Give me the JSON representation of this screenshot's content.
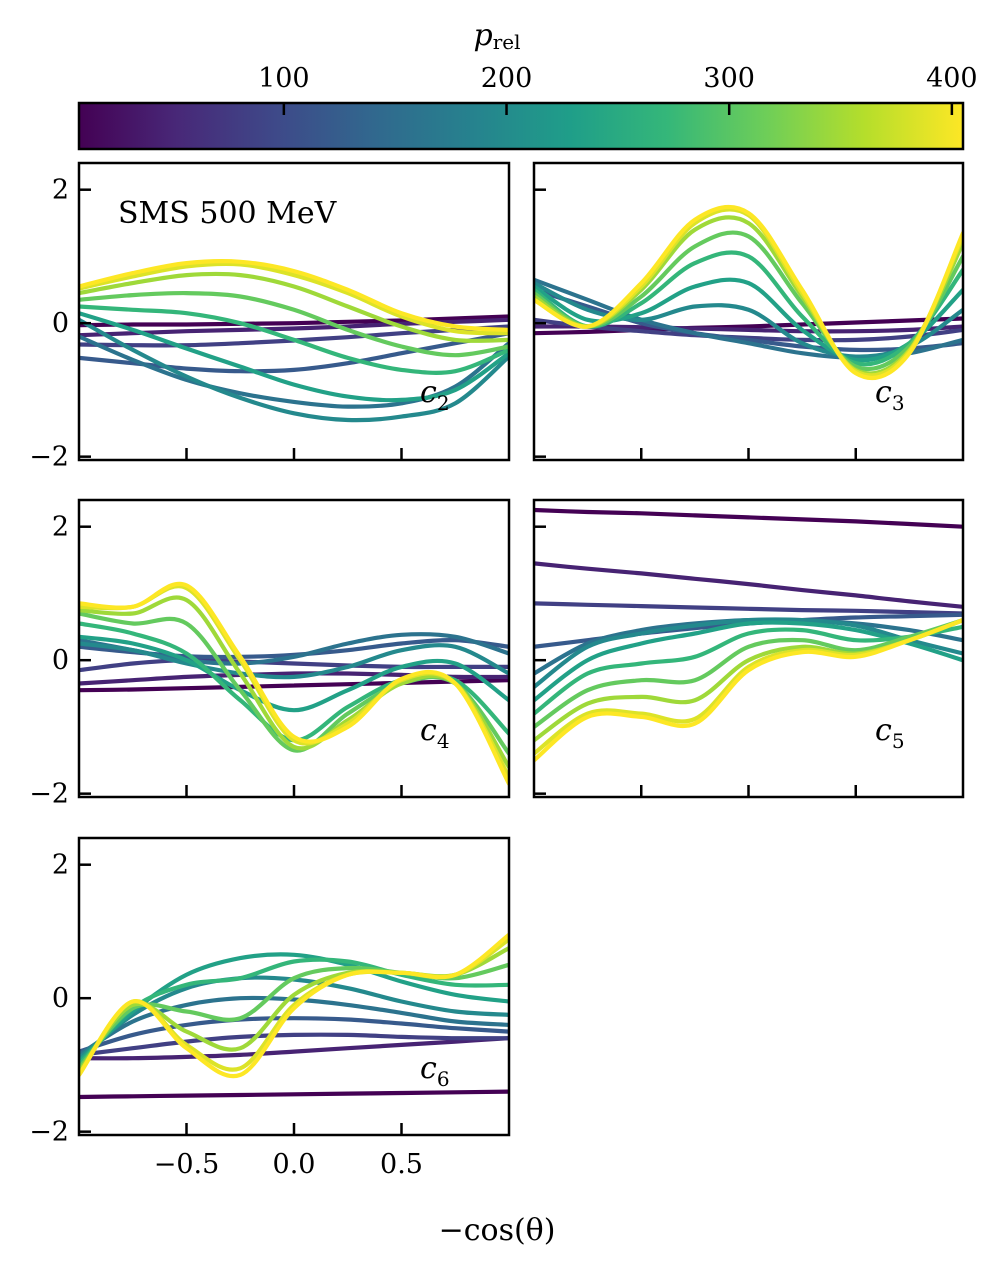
{
  "chart_data": {
    "type": "line",
    "annotation": "SMS 500 MeV",
    "xlabel": "−cos(θ)",
    "xlim": [
      -1,
      1
    ],
    "ylim": [
      -2.05,
      2.4
    ],
    "xticks": [
      -0.5,
      0.0,
      0.5
    ],
    "xtick_labels": [
      "−0.5",
      "0.0",
      "0.5"
    ],
    "yticks": [
      -2,
      0,
      2
    ],
    "ytick_labels": [
      "−2",
      "0",
      "2"
    ],
    "colorbar": {
      "label": "p",
      "label_sub": "rel",
      "range": [
        8,
        405
      ],
      "ticks": [
        100,
        200,
        300,
        400
      ],
      "tick_labels": [
        "100",
        "200",
        "300",
        "400"
      ],
      "colormap": "viridis",
      "colors": [
        "#440154",
        "#482878",
        "#3e4989",
        "#31688e",
        "#26828e",
        "#1f9e89",
        "#35b779",
        "#6ece58",
        "#b5de2b",
        "#fde725"
      ]
    },
    "series_momenta": [
      8,
      46,
      84,
      121,
      159,
      196,
      234,
      271,
      309,
      347,
      385,
      405
    ],
    "panels": [
      {
        "name": "c2",
        "label_main": "c",
        "label_sub": "2",
        "x": [
          -1.0,
          -0.75,
          -0.5,
          -0.25,
          0.0,
          0.25,
          0.5,
          0.75,
          1.0
        ],
        "series": [
          {
            "p": 8,
            "y": [
              -0.03,
              -0.02,
              -0.02,
              -0.01,
              0.0,
              0.02,
              0.04,
              0.07,
              0.1
            ]
          },
          {
            "p": 46,
            "y": [
              -0.18,
              -0.15,
              -0.12,
              -0.1,
              -0.08,
              -0.05,
              -0.01,
              0.02,
              0.05
            ]
          },
          {
            "p": 84,
            "y": [
              -0.32,
              -0.33,
              -0.33,
              -0.3,
              -0.26,
              -0.21,
              -0.15,
              -0.1,
              -0.05
            ]
          },
          {
            "p": 121,
            "y": [
              -0.52,
              -0.6,
              -0.68,
              -0.72,
              -0.7,
              -0.6,
              -0.45,
              -0.3,
              -0.15
            ]
          },
          {
            "p": 159,
            "y": [
              -0.2,
              -0.55,
              -0.85,
              -1.05,
              -1.18,
              -1.25,
              -1.2,
              -0.95,
              -0.3
            ]
          },
          {
            "p": 196,
            "y": [
              0.05,
              -0.4,
              -0.8,
              -1.12,
              -1.35,
              -1.45,
              -1.4,
              -1.2,
              -0.5
            ]
          },
          {
            "p": 234,
            "y": [
              0.15,
              -0.1,
              -0.38,
              -0.65,
              -0.92,
              -1.1,
              -1.15,
              -1.0,
              -0.45
            ]
          },
          {
            "p": 271,
            "y": [
              0.25,
              0.2,
              0.15,
              0.0,
              -0.25,
              -0.52,
              -0.7,
              -0.72,
              -0.4
            ]
          },
          {
            "p": 309,
            "y": [
              0.35,
              0.42,
              0.45,
              0.4,
              0.2,
              -0.1,
              -0.35,
              -0.48,
              -0.35
            ]
          },
          {
            "p": 347,
            "y": [
              0.45,
              0.6,
              0.72,
              0.72,
              0.55,
              0.25,
              -0.05,
              -0.25,
              -0.25
            ]
          },
          {
            "p": 385,
            "y": [
              0.52,
              0.7,
              0.85,
              0.88,
              0.72,
              0.45,
              0.1,
              -0.12,
              -0.15
            ]
          },
          {
            "p": 405,
            "y": [
              0.55,
              0.75,
              0.9,
              0.92,
              0.78,
              0.5,
              0.15,
              -0.05,
              -0.1
            ]
          }
        ]
      },
      {
        "name": "c3",
        "label_main": "c",
        "label_sub": "3",
        "x": [
          -1.0,
          -0.75,
          -0.5,
          -0.25,
          0.0,
          0.25,
          0.5,
          0.75,
          1.0
        ],
        "series": [
          {
            "p": 8,
            "y": [
              -0.15,
              -0.13,
              -0.1,
              -0.07,
              -0.05,
              -0.02,
              0.01,
              0.04,
              0.07
            ]
          },
          {
            "p": 46,
            "y": [
              -0.05,
              -0.05,
              -0.06,
              -0.08,
              -0.1,
              -0.12,
              -0.12,
              -0.1,
              -0.05
            ]
          },
          {
            "p": 84,
            "y": [
              0.05,
              -0.05,
              -0.12,
              -0.18,
              -0.22,
              -0.25,
              -0.25,
              -0.2,
              -0.1
            ]
          },
          {
            "p": 121,
            "y": [
              0.5,
              0.25,
              0.0,
              -0.15,
              -0.25,
              -0.35,
              -0.4,
              -0.38,
              -0.3
            ]
          },
          {
            "p": 159,
            "y": [
              0.65,
              0.35,
              0.05,
              -0.15,
              -0.3,
              -0.45,
              -0.52,
              -0.45,
              -0.25
            ]
          },
          {
            "p": 196,
            "y": [
              0.6,
              0.2,
              0.05,
              0.25,
              0.2,
              -0.3,
              -0.5,
              -0.35,
              0.2
            ]
          },
          {
            "p": 234,
            "y": [
              0.55,
              0.05,
              0.15,
              0.55,
              0.6,
              -0.1,
              -0.55,
              -0.3,
              0.5
            ]
          },
          {
            "p": 271,
            "y": [
              0.5,
              -0.05,
              0.3,
              0.9,
              1.0,
              0.1,
              -0.6,
              -0.3,
              0.8
            ]
          },
          {
            "p": 309,
            "y": [
              0.45,
              -0.05,
              0.4,
              1.15,
              1.3,
              0.3,
              -0.65,
              -0.35,
              1.0
            ]
          },
          {
            "p": 347,
            "y": [
              0.4,
              -0.05,
              0.5,
              1.4,
              1.5,
              0.4,
              -0.7,
              -0.4,
              1.2
            ]
          },
          {
            "p": 385,
            "y": [
              0.35,
              -0.05,
              0.55,
              1.5,
              1.62,
              0.45,
              -0.72,
              -0.42,
              1.3
            ]
          },
          {
            "p": 405,
            "y": [
              0.35,
              -0.05,
              0.6,
              1.55,
              1.65,
              0.5,
              -0.75,
              -0.45,
              1.35
            ]
          }
        ]
      },
      {
        "name": "c4",
        "label_main": "c",
        "label_sub": "4",
        "x": [
          -1.0,
          -0.75,
          -0.5,
          -0.25,
          0.0,
          0.25,
          0.5,
          0.75,
          1.0
        ],
        "series": [
          {
            "p": 8,
            "y": [
              -0.45,
              -0.44,
              -0.42,
              -0.4,
              -0.38,
              -0.36,
              -0.34,
              -0.32,
              -0.3
            ]
          },
          {
            "p": 46,
            "y": [
              -0.35,
              -0.3,
              -0.25,
              -0.22,
              -0.2,
              -0.2,
              -0.22,
              -0.25,
              -0.25
            ]
          },
          {
            "p": 84,
            "y": [
              -0.15,
              -0.05,
              0.0,
              -0.02,
              -0.05,
              -0.08,
              -0.1,
              -0.1,
              -0.1
            ]
          },
          {
            "p": 121,
            "y": [
              0.2,
              0.12,
              0.06,
              0.05,
              0.08,
              0.15,
              0.25,
              0.3,
              0.2
            ]
          },
          {
            "p": 159,
            "y": [
              0.3,
              0.15,
              0.0,
              -0.05,
              0.05,
              0.25,
              0.38,
              0.35,
              0.1
            ]
          },
          {
            "p": 196,
            "y": [
              0.25,
              0.15,
              -0.05,
              -0.2,
              -0.25,
              -0.1,
              0.15,
              0.2,
              -0.2
            ]
          },
          {
            "p": 234,
            "y": [
              0.35,
              0.25,
              0.0,
              -0.45,
              -0.75,
              -0.45,
              -0.1,
              -0.05,
              -0.6
            ]
          },
          {
            "p": 271,
            "y": [
              0.55,
              0.4,
              0.1,
              -0.6,
              -1.2,
              -0.7,
              -0.3,
              -0.3,
              -1.1
            ]
          },
          {
            "p": 309,
            "y": [
              0.7,
              0.55,
              0.55,
              -0.45,
              -1.35,
              -0.8,
              -0.35,
              -0.35,
              -1.4
            ]
          },
          {
            "p": 347,
            "y": [
              0.75,
              0.7,
              0.9,
              -0.2,
              -1.3,
              -0.9,
              -0.35,
              -0.35,
              -1.6
            ]
          },
          {
            "p": 385,
            "y": [
              0.8,
              0.8,
              1.08,
              0.0,
              -1.2,
              -0.95,
              -0.3,
              -0.35,
              -1.75
            ]
          },
          {
            "p": 405,
            "y": [
              0.85,
              0.8,
              1.12,
              0.05,
              -1.15,
              -1.0,
              -0.28,
              -0.35,
              -1.85
            ]
          }
        ]
      },
      {
        "name": "c5",
        "label_main": "c",
        "label_sub": "5",
        "x": [
          -1.0,
          -0.75,
          -0.5,
          -0.25,
          0.0,
          0.25,
          0.5,
          0.75,
          1.0
        ],
        "series": [
          {
            "p": 8,
            "y": [
              2.25,
              2.22,
              2.2,
              2.17,
              2.14,
              2.11,
              2.08,
              2.04,
              2.0
            ]
          },
          {
            "p": 46,
            "y": [
              1.45,
              1.37,
              1.3,
              1.22,
              1.14,
              1.05,
              0.97,
              0.88,
              0.8
            ]
          },
          {
            "p": 84,
            "y": [
              0.85,
              0.83,
              0.81,
              0.79,
              0.77,
              0.75,
              0.74,
              0.72,
              0.7
            ]
          },
          {
            "p": 121,
            "y": [
              0.2,
              0.3,
              0.4,
              0.48,
              0.55,
              0.6,
              0.64,
              0.66,
              0.68
            ]
          },
          {
            "p": 159,
            "y": [
              -0.2,
              0.25,
              0.45,
              0.55,
              0.6,
              0.6,
              0.55,
              0.45,
              0.3
            ]
          },
          {
            "p": 196,
            "y": [
              -0.4,
              0.2,
              0.4,
              0.52,
              0.6,
              0.6,
              0.52,
              0.3,
              0.1
            ]
          },
          {
            "p": 234,
            "y": [
              -0.6,
              0.0,
              0.25,
              0.4,
              0.55,
              0.55,
              0.45,
              0.25,
              0.0
            ]
          },
          {
            "p": 271,
            "y": [
              -0.8,
              -0.2,
              -0.05,
              0.05,
              0.4,
              0.45,
              0.3,
              0.35,
              0.5
            ]
          },
          {
            "p": 309,
            "y": [
              -1.0,
              -0.45,
              -0.3,
              -0.3,
              0.2,
              0.3,
              0.15,
              0.35,
              0.6
            ]
          },
          {
            "p": 347,
            "y": [
              -1.2,
              -0.65,
              -0.55,
              -0.6,
              0.0,
              0.2,
              0.1,
              0.3,
              0.6
            ]
          },
          {
            "p": 385,
            "y": [
              -1.4,
              -0.8,
              -0.8,
              -0.88,
              -0.1,
              0.15,
              0.08,
              0.3,
              0.6
            ]
          },
          {
            "p": 405,
            "y": [
              -1.5,
              -0.85,
              -0.85,
              -0.95,
              -0.15,
              0.12,
              0.05,
              0.3,
              0.6
            ]
          }
        ]
      },
      {
        "name": "c6",
        "label_main": "c",
        "label_sub": "6",
        "x": [
          -1.0,
          -0.75,
          -0.5,
          -0.25,
          0.0,
          0.25,
          0.5,
          0.75,
          1.0
        ],
        "series": [
          {
            "p": 8,
            "y": [
              -1.48,
              -1.47,
              -1.46,
              -1.45,
              -1.44,
              -1.43,
              -1.42,
              -1.41,
              -1.4
            ]
          },
          {
            "p": 46,
            "y": [
              -0.9,
              -0.9,
              -0.88,
              -0.85,
              -0.8,
              -0.75,
              -0.7,
              -0.65,
              -0.6
            ]
          },
          {
            "p": 84,
            "y": [
              -0.85,
              -0.75,
              -0.65,
              -0.58,
              -0.55,
              -0.55,
              -0.58,
              -0.6,
              -0.6
            ]
          },
          {
            "p": 121,
            "y": [
              -0.8,
              -0.55,
              -0.4,
              -0.32,
              -0.3,
              -0.32,
              -0.38,
              -0.45,
              -0.5
            ]
          },
          {
            "p": 159,
            "y": [
              -0.85,
              -0.35,
              -0.1,
              -0.0,
              -0.02,
              -0.1,
              -0.22,
              -0.35,
              -0.4
            ]
          },
          {
            "p": 196,
            "y": [
              -0.9,
              -0.25,
              0.15,
              0.3,
              0.28,
              0.15,
              -0.05,
              -0.2,
              -0.25
            ]
          },
          {
            "p": 234,
            "y": [
              -0.95,
              -0.2,
              0.35,
              0.6,
              0.65,
              0.5,
              0.25,
              0.05,
              -0.05
            ]
          },
          {
            "p": 271,
            "y": [
              -1.0,
              -0.15,
              0.2,
              0.3,
              0.55,
              0.55,
              0.35,
              0.2,
              0.2
            ]
          },
          {
            "p": 309,
            "y": [
              -1.05,
              -0.15,
              -0.2,
              -0.3,
              0.3,
              0.45,
              0.38,
              0.3,
              0.5
            ]
          },
          {
            "p": 347,
            "y": [
              -1.1,
              -0.1,
              -0.5,
              -0.75,
              0.05,
              0.38,
              0.38,
              0.35,
              0.75
            ]
          },
          {
            "p": 385,
            "y": [
              -1.15,
              -0.05,
              -0.7,
              -1.05,
              -0.1,
              0.35,
              0.38,
              0.35,
              0.88
            ]
          },
          {
            "p": 405,
            "y": [
              -1.15,
              -0.05,
              -0.75,
              -1.15,
              -0.15,
              0.35,
              0.38,
              0.35,
              0.95
            ]
          }
        ]
      }
    ]
  }
}
